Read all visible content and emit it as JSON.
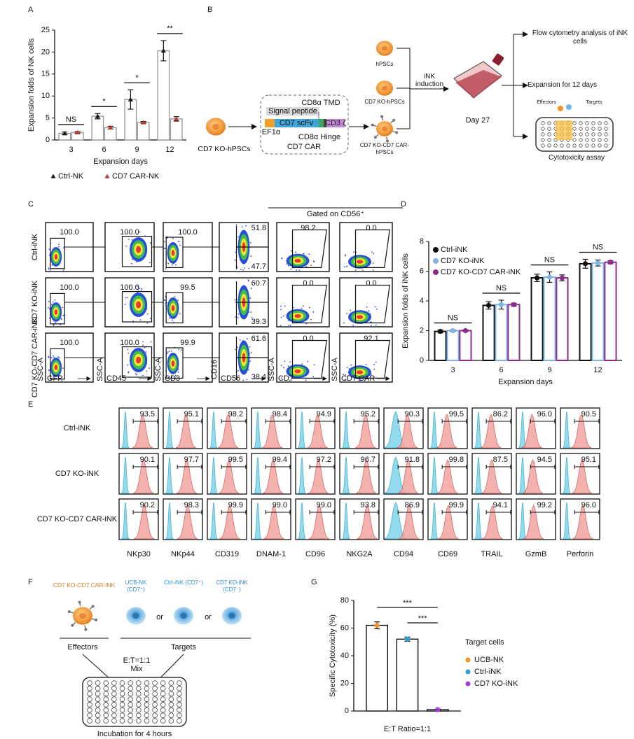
{
  "panel_labels": [
    "A",
    "B",
    "C",
    "D",
    "E",
    "F",
    "G"
  ],
  "chart_data": [
    {
      "type": "bar",
      "y_label": "Expansion folds of NK cells",
      "x_label": "Expansion days",
      "categories": [
        "3",
        "6",
        "9",
        "12"
      ],
      "ylim": [
        0,
        25
      ],
      "yticks": [
        0,
        5,
        10,
        15,
        20,
        25
      ],
      "marker": "triangle",
      "bar_edge": "#9a9a9a",
      "legend": "bottom",
      "series": [
        {
          "name": "Ctrl-NK",
          "color": "#1a1a1a",
          "values": [
            1.5,
            5.4,
            9.2,
            20.3
          ],
          "errors": [
            0.3,
            0.6,
            2.2,
            2.3
          ]
        },
        {
          "name": "CD7 CAR-NK",
          "color": "#c0392b",
          "values": [
            1.7,
            2.8,
            4.0,
            4.8
          ],
          "errors": [
            0.2,
            0.3,
            0.2,
            0.5
          ]
        }
      ],
      "significance": [
        "NS",
        "*",
        "*",
        "**"
      ]
    },
    {
      "type": "bar",
      "y_label": "Expansion folds of iNK cells",
      "x_label": "Expansion days",
      "categories": [
        "3",
        "6",
        "9",
        "12"
      ],
      "ylim": [
        0,
        8
      ],
      "yticks": [
        0,
        2,
        4,
        6,
        8
      ],
      "marker": "circle",
      "legend": "top-left",
      "series": [
        {
          "name": "Ctrl-iNK",
          "color": "#111111",
          "values": [
            1.95,
            3.7,
            5.55,
            6.5
          ],
          "errors": [
            0.1,
            0.25,
            0.25,
            0.3
          ]
        },
        {
          "name": "CD7 KO-iNK",
          "color": "#7fb3e6",
          "values": [
            2.0,
            3.75,
            5.6,
            6.55
          ],
          "errors": [
            0.05,
            0.3,
            0.35,
            0.2
          ]
        },
        {
          "name": "CD7 KO-CD7 CAR-iNK",
          "color": "#8e2c8e",
          "values": [
            2.0,
            3.75,
            5.55,
            6.6
          ],
          "errors": [
            0.05,
            0.1,
            0.2,
            0.1
          ]
        }
      ],
      "significance": [
        "NS",
        "NS",
        "NS",
        "NS"
      ]
    },
    {
      "type": "bar",
      "y_label": "Specific Cytotoxicity (%)",
      "x_label": "E:T Ratio=1:1",
      "categories": [
        null
      ],
      "ylim": [
        0,
        80
      ],
      "yticks": [
        0,
        20,
        40,
        60,
        80
      ],
      "marker": "circle",
      "bar_edge": "#111111",
      "legend": "right",
      "legend_title": "Target cells",
      "series": [
        {
          "name": "UCB-NK",
          "color": "#f0932b",
          "values": [
            62
          ],
          "errors": [
            2.5
          ]
        },
        {
          "name": "Ctrl-iNK",
          "color": "#2e9fd6",
          "values": [
            52
          ],
          "errors": [
            1.5
          ]
        },
        {
          "name": "CD7 KO-iNK",
          "color": "#9b3fd6",
          "values": [
            1
          ],
          "errors": [
            0.5
          ]
        }
      ],
      "significance": [
        "***",
        "***"
      ]
    }
  ],
  "panel_b": {
    "start_cell": "CD7 KO-hPSCs",
    "construct_title": "CD7 CAR",
    "signal_peptide": "Signal peptide",
    "tmd": "CD8α TMD",
    "promoter": "EF1α",
    "scfv": "CD7 scFv",
    "cd3z": "CD3 ζ",
    "hinge": "CD8α Hinge",
    "cells": [
      "hPSCs",
      "CD7 KO-hPSCs",
      "CD7 KO-CD7 CAR-hPSCs"
    ],
    "induction": "iNK induction",
    "day": "Day 27",
    "outcomes": [
      "Flow cytometry analysis of iNK cells",
      "Expansion for 12 days",
      "Cytotoxicity assay"
    ],
    "effectors": "Effectors",
    "targets": "Targets"
  },
  "panel_c": {
    "gate_note": "Gated on CD56⁺",
    "rows": [
      "Ctrl-iNK",
      "CD7 KO-iNK",
      "CD7 KO-CD7 CAR-iNK"
    ],
    "x_axes": [
      "GFP",
      "CD45",
      "CD3",
      "CD56",
      "CD7",
      "CD7 CAR"
    ],
    "y_axes": [
      "SSC-A",
      "SSC-A",
      "SSC-A",
      "CD16",
      "SSC-A",
      "SSC-A"
    ],
    "percentages": [
      [
        "100.0",
        "100.0",
        "100.0",
        [
          "51.8",
          "47.7"
        ],
        "98.2",
        "0.0"
      ],
      [
        "100.0",
        "100.0",
        "99.5",
        [
          "60.7",
          "39.3"
        ],
        "0.0",
        "0.0"
      ],
      [
        "100.0",
        "100.0",
        "99.9",
        [
          "61.6",
          "38.4"
        ],
        "0.0",
        "92.1"
      ]
    ]
  },
  "panel_e": {
    "rows": [
      "Ctrl-iNK",
      "CD7 KO-iNK",
      "CD7 KO-CD7 CAR-iNK"
    ],
    "markers": [
      "NKp30",
      "NKp44",
      "CD319",
      "DNAM-1",
      "CD96",
      "NKG2A",
      "CD94",
      "CD69",
      "TRAIL",
      "GzmB",
      "Perforin"
    ],
    "percentages": [
      [
        "93.5",
        "95.1",
        "98.2",
        "98.4",
        "94.9",
        "95.2",
        "90.3",
        "99.5",
        "86.2",
        "96.0",
        "90.5"
      ],
      [
        "90.1",
        "97.7",
        "99.5",
        "99.4",
        "97.2",
        "96.7",
        "91.8",
        "99.8",
        "87.5",
        "94.5",
        "95.1"
      ],
      [
        "90.2",
        "98.3",
        "99.9",
        "99.0",
        "99.0",
        "93.8",
        "86.9",
        "99.9",
        "94.1",
        "99.2",
        "96.0"
      ]
    ]
  },
  "panel_f": {
    "effector": "CD7 KO-CD7 CAR-iNK",
    "targets_list": [
      "UCB-NK (CD7⁺)",
      "Ctrl-iNK (CD7⁺)",
      "CD7 KO-iNK (CD7⁻)"
    ],
    "separators": [
      "or",
      "or"
    ],
    "effectors_label": "Effectors",
    "targets_label": "Targets",
    "ratio": "E:T=1:1",
    "mix": "Mix",
    "incubation": "Incubation for 4 hours"
  }
}
